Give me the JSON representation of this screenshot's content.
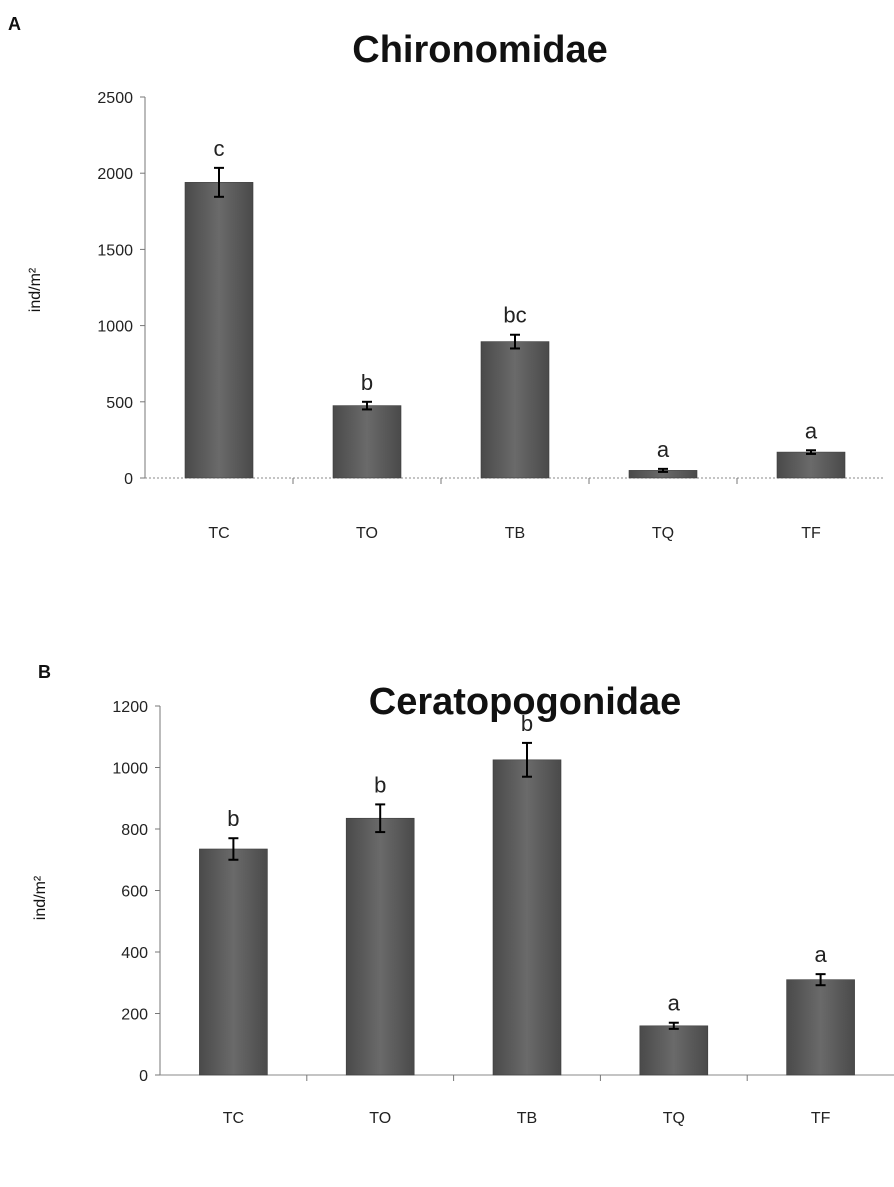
{
  "chart_data": [
    {
      "panel": "A",
      "type": "bar",
      "title": "Chironomidae",
      "ylabel": "ind/m²",
      "xlabel": "",
      "categories": [
        "TC",
        "TO",
        "TB",
        "TQ",
        "TF"
      ],
      "values": [
        1940,
        475,
        895,
        50,
        170
      ],
      "errors": [
        95,
        25,
        45,
        10,
        12
      ],
      "significance": [
        "c",
        "b",
        "bc",
        "a",
        "a"
      ],
      "ylim": [
        0,
        2500
      ],
      "yticks": [
        "0",
        "500",
        "1000",
        "1500",
        "2000",
        "2500"
      ],
      "grid": false,
      "bar_color": "#555555"
    },
    {
      "panel": "B",
      "type": "bar",
      "title": "Ceratopogonidae",
      "ylabel": "ind/m²",
      "xlabel": "",
      "categories": [
        "TC",
        "TO",
        "TB",
        "TQ",
        "TF"
      ],
      "values": [
        735,
        835,
        1025,
        160,
        310
      ],
      "errors": [
        35,
        45,
        55,
        10,
        18
      ],
      "significance": [
        "b",
        "b",
        "b",
        "a",
        "a"
      ],
      "ylim": [
        0,
        1200
      ],
      "yticks": [
        "0",
        "200",
        "400",
        "600",
        "800",
        "1000",
        "1200"
      ],
      "grid": false,
      "bar_color": "#555555"
    }
  ]
}
